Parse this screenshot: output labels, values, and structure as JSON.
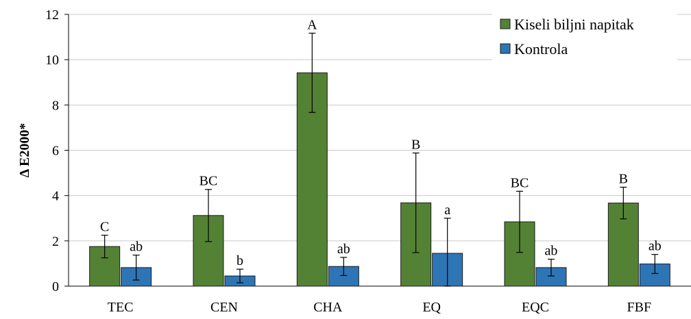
{
  "chart_data": {
    "type": "bar",
    "title": "",
    "xlabel": "",
    "ylabel": "Δ E2000*",
    "ylim": [
      0,
      12
    ],
    "yticks": [
      0,
      2,
      4,
      6,
      8,
      10,
      12
    ],
    "grid": true,
    "legend_position": "top-right",
    "categories": [
      "TEC",
      "CEN",
      "CHA",
      "EQ",
      "EQC",
      "FBF"
    ],
    "series": [
      {
        "name": "Kiseli biljni napitak",
        "color": "#548235",
        "values": [
          1.75,
          3.12,
          9.42,
          3.68,
          2.84,
          3.67
        ],
        "error": [
          0.5,
          1.15,
          1.75,
          2.2,
          1.35,
          0.7
        ],
        "labels": [
          "C",
          "BC",
          "A",
          "B",
          "BC",
          "B"
        ]
      },
      {
        "name": "Kontrola",
        "color": "#2e75b6",
        "values": [
          0.82,
          0.45,
          0.87,
          1.45,
          0.82,
          0.98
        ],
        "error": [
          0.55,
          0.3,
          0.4,
          1.55,
          0.37,
          0.42
        ],
        "labels": [
          "ab",
          "b",
          "ab",
          "a",
          "ab",
          "ab"
        ]
      }
    ]
  }
}
